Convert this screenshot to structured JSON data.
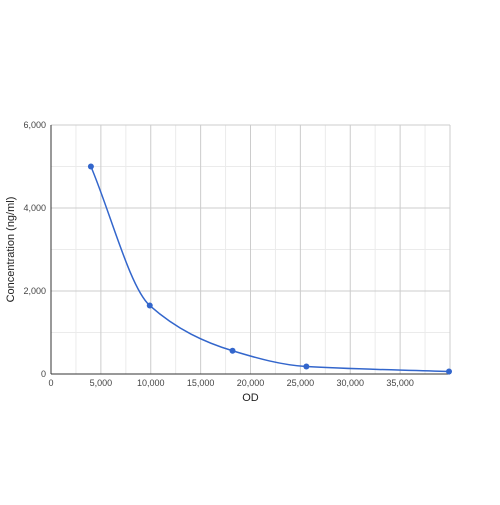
{
  "chart_data": {
    "type": "line",
    "title": "",
    "xlabel": "OD",
    "ylabel": "Concentration (ng/ml)",
    "xlim": [
      0,
      40000
    ],
    "ylim": [
      0,
      6000
    ],
    "x_ticks": [
      0,
      5000,
      10000,
      15000,
      20000,
      25000,
      30000,
      35000
    ],
    "x_tick_labels": [
      "0",
      "5,000",
      "10,000",
      "15,000",
      "20,000",
      "25,000",
      "30,000",
      "35,000"
    ],
    "y_ticks": [
      0,
      2000,
      4000,
      6000
    ],
    "y_tick_labels": [
      "0",
      "2,000",
      "4,000",
      "6,000"
    ],
    "grid": true,
    "series": [
      {
        "x": [
          4000,
          9900,
          18200,
          25600,
          39900
        ],
        "y": [
          5000,
          1650,
          560,
          180,
          60
        ],
        "smooth": true,
        "markers": true
      }
    ],
    "colors": {
      "line": "#3366cc",
      "marker": "#3366cc",
      "major_grid": "#cccccc",
      "minor_grid": "#ebebeb",
      "axis": "#333333"
    }
  }
}
